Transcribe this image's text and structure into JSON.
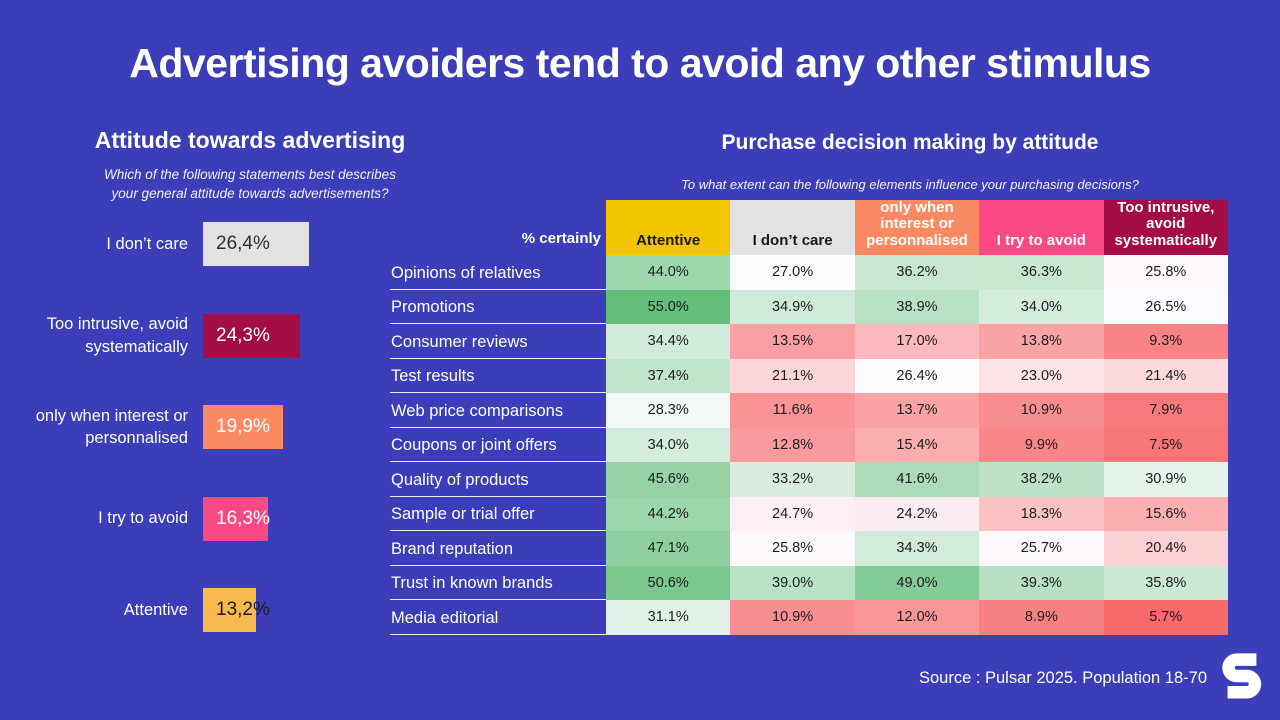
{
  "title": "Advertising avoiders tend to avoid any other stimulus",
  "colors": {
    "background": "#3B3EB8",
    "text": "#FFFFFF"
  },
  "chart_data": [
    {
      "type": "bar",
      "orientation": "horizontal",
      "title": "Attitude towards advertising",
      "subtitle": "Which of the following statements best describes\nyour general attitude towards advertisements?",
      "categories": [
        "I don’t care",
        "Too intrusive, avoid systematically",
        "only when interest or personnalised",
        "I try to avoid",
        "Attentive"
      ],
      "values": [
        26.4,
        24.3,
        19.9,
        16.3,
        13.2
      ],
      "value_labels": [
        "26,4%",
        "24,3%",
        "19,9%",
        "16,3%",
        "13,2%"
      ],
      "bar_colors": [
        "#E2E2E2",
        "#A40D44",
        "#FB8A62",
        "#FA4A86",
        "#F8BA4D"
      ],
      "bar_text_colors": [
        "#2E2E2E",
        "#FFFFFF",
        "#FFFFFF",
        "#FFFFFF",
        "#1A1A1A"
      ],
      "xlim": [
        0,
        30
      ],
      "grid": false,
      "legend": false
    },
    {
      "type": "heatmap",
      "title": "Purchase decision making by attitude",
      "subtitle": "To what extent can the following elements influence your purchasing decisions?",
      "corner_label": "% certainly",
      "columns": [
        "Attentive",
        "I don’t care",
        "only when interest or personnalised",
        "I try to avoid",
        "Too intrusive, avoid systematically"
      ],
      "column_colors": [
        "#F2C500",
        "#E2E2E2",
        "#FB8A62",
        "#FA4A86",
        "#A40D44"
      ],
      "column_text_colors": [
        "#1A1A1A",
        "#1A1A1A",
        "#FFFFFF",
        "#FFFFFF",
        "#FFFFFF"
      ],
      "rows": [
        "Opinions of relatives",
        "Promotions",
        "Consumer reviews",
        "Test results",
        "Web price comparisons",
        "Coupons or joint offers",
        "Quality of products",
        "Sample or trial offer",
        "Brand reputation",
        "Trust in known brands",
        "Media editorial"
      ],
      "values": [
        [
          44.0,
          27.0,
          36.2,
          36.3,
          25.8
        ],
        [
          55.0,
          34.9,
          38.9,
          34.0,
          26.5
        ],
        [
          34.4,
          13.5,
          17.0,
          13.8,
          9.3
        ],
        [
          37.4,
          21.1,
          26.4,
          23.0,
          21.4
        ],
        [
          28.3,
          11.6,
          13.7,
          10.9,
          7.9
        ],
        [
          34.0,
          12.8,
          15.4,
          9.9,
          7.5
        ],
        [
          45.6,
          33.2,
          41.6,
          38.2,
          30.9
        ],
        [
          44.2,
          24.7,
          24.2,
          18.3,
          15.6
        ],
        [
          47.1,
          25.8,
          34.3,
          25.7,
          20.4
        ],
        [
          50.6,
          39.0,
          49.0,
          39.3,
          35.8
        ],
        [
          31.1,
          10.9,
          12.0,
          8.9,
          5.7
        ]
      ],
      "value_suffix": "%",
      "color_scale": {
        "min": 5.7,
        "mid": 26.4,
        "max": 55.0,
        "min_color": "#F8696B",
        "mid_color": "#FCFCFF",
        "max_color": "#63BE7B"
      }
    }
  ],
  "footer": {
    "source": "Source : Pulsar 2025. Population 18-70",
    "logo": "S"
  }
}
